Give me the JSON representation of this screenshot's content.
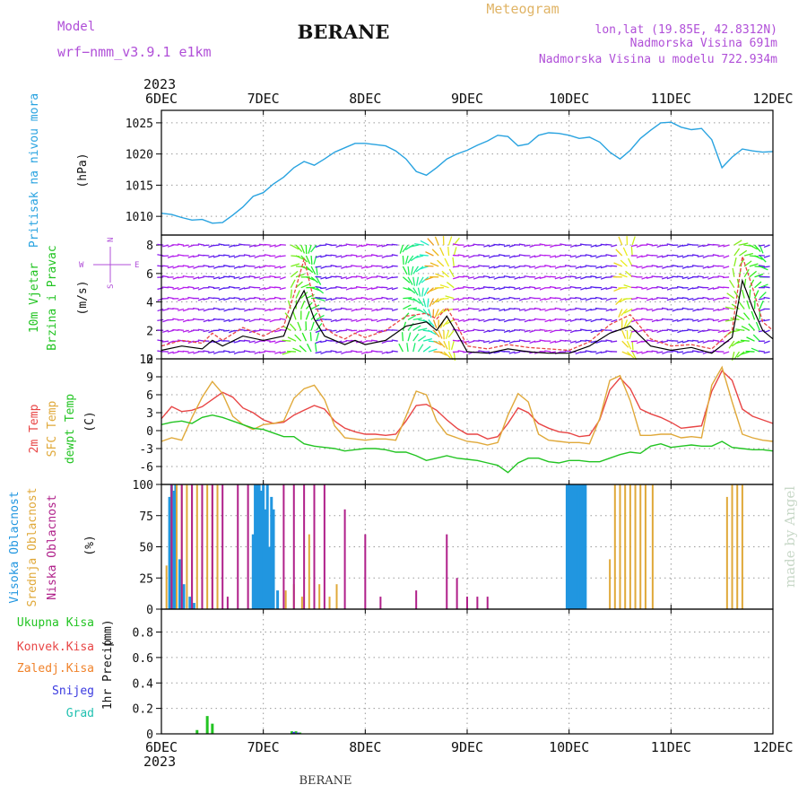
{
  "header": {
    "model_label": "Model",
    "model_value": "wrf−nmm_v3.9.1  e1km",
    "station": "BERANE",
    "product": "Meteogram",
    "lonlat": "lon,lat (19.85E, 42.8312N)",
    "elevation": "Nadmorska Visina 691m",
    "model_elevation": "Nadmorska Visina u modelu 722.934m",
    "footer_station": "BERANE",
    "credit": "made by Angel"
  },
  "colors": {
    "pressure": "#29a3e0",
    "temp2m": "#e84545",
    "sfc": "#e0a93a",
    "dewpt": "#22c422",
    "high_cloud": "#2196e0",
    "mid_cloud": "#e0a93a",
    "low_cloud": "#b0208a",
    "total_precip": "#22c422",
    "conv_precip": "#e84545",
    "frz_precip": "#f0822a",
    "snow": "#3a3ae0",
    "hail": "#20c0b0",
    "wind_label": "#22c422",
    "wind_direction": "#b04fd8"
  },
  "chart_data": [
    {
      "type": "line",
      "panel": "pressure",
      "ylabel": "Pritisak na nivou mora",
      "unit": "(hPa)",
      "ylim": [
        1007,
        1027
      ],
      "yticks": [
        1010,
        1015,
        1020,
        1025
      ],
      "xticks": [
        "6DEC",
        "7DEC",
        "8DEC",
        "9DEC",
        "10DEC",
        "11DEC",
        "12DEC"
      ],
      "year": "2023",
      "grid": true,
      "series": [
        {
          "key": "pressure",
          "x": [
            0,
            0.1,
            0.2,
            0.3,
            0.4,
            0.5,
            0.6,
            0.7,
            0.8,
            0.9,
            1.0,
            1.1,
            1.2,
            1.3,
            1.4,
            1.5,
            1.6,
            1.7,
            1.8,
            1.9,
            2.0,
            2.1,
            2.2,
            2.3,
            2.4,
            2.5,
            2.6,
            2.7,
            2.8,
            2.9,
            3.0,
            3.1,
            3.2,
            3.3,
            3.4,
            3.5,
            3.6,
            3.7,
            3.8,
            3.9,
            4.0,
            4.1,
            4.2,
            4.3,
            4.4,
            4.5,
            4.6,
            4.7,
            4.8,
            4.9,
            5.0,
            5.1,
            5.2,
            5.3,
            5.4,
            5.5,
            5.6,
            5.7,
            5.8,
            5.9,
            6.0
          ],
          "values": [
            1010.5,
            1010.3,
            1009.8,
            1009.4,
            1009.5,
            1008.9,
            1009.0,
            1010.2,
            1011.5,
            1013.2,
            1013.8,
            1015.2,
            1016.3,
            1017.8,
            1018.8,
            1018.2,
            1019.2,
            1020.3,
            1021.0,
            1021.7,
            1021.7,
            1021.5,
            1021.3,
            1020.5,
            1019.2,
            1017.2,
            1016.6,
            1017.8,
            1019.2,
            1020.0,
            1020.6,
            1021.4,
            1022.1,
            1023.0,
            1022.8,
            1021.3,
            1021.6,
            1023.0,
            1023.4,
            1023.3,
            1023.0,
            1022.5,
            1022.7,
            1021.9,
            1020.3,
            1019.2,
            1020.6,
            1022.5,
            1023.8,
            1025.0,
            1025.1,
            1024.3,
            1023.9,
            1024.1,
            1022.3,
            1017.8,
            1019.5,
            1020.8,
            1020.5,
            1020.3,
            1020.4
          ]
        }
      ]
    },
    {
      "type": "line",
      "panel": "wind",
      "ylabel": "10m Vjetar",
      "ylabel2": "Brzina i Pravac",
      "unit": "(m/s)",
      "compass": {
        "n": "N",
        "s": "S",
        "w": "W",
        "e": "E"
      },
      "ylim": [
        0,
        8.7
      ],
      "yticks": [
        0,
        2,
        4,
        6,
        8
      ],
      "grid": true,
      "series": [
        {
          "key": "speed",
          "x": [
            0,
            0.2,
            0.4,
            0.5,
            0.6,
            0.8,
            1.0,
            1.2,
            1.3,
            1.4,
            1.5,
            1.6,
            1.7,
            1.8,
            1.9,
            2.0,
            2.2,
            2.4,
            2.6,
            2.7,
            2.8,
            2.9,
            3.0,
            3.2,
            3.4,
            3.6,
            3.8,
            4.0,
            4.2,
            4.4,
            4.6,
            4.8,
            5.0,
            5.2,
            5.4,
            5.6,
            5.7,
            5.8,
            5.9,
            6.0
          ],
          "values": [
            0.6,
            0.9,
            0.7,
            1.3,
            0.9,
            1.6,
            1.3,
            1.6,
            3.5,
            4.8,
            2.8,
            1.6,
            1.3,
            1.0,
            1.3,
            1.0,
            1.3,
            2.3,
            2.6,
            2.0,
            3.0,
            1.8,
            0.5,
            0.4,
            0.7,
            0.5,
            0.4,
            0.4,
            0.9,
            1.8,
            2.3,
            0.9,
            0.6,
            0.8,
            0.4,
            1.5,
            5.5,
            3.6,
            2.0,
            1.4
          ]
        },
        {
          "key": "gust",
          "x": [
            0,
            0.2,
            0.4,
            0.5,
            0.6,
            0.8,
            1.0,
            1.2,
            1.3,
            1.4,
            1.5,
            1.6,
            1.7,
            1.8,
            1.9,
            2.0,
            2.2,
            2.4,
            2.6,
            2.7,
            2.8,
            2.9,
            3.0,
            3.2,
            3.4,
            3.6,
            3.8,
            4.0,
            4.2,
            4.4,
            4.6,
            4.8,
            5.0,
            5.2,
            5.4,
            5.6,
            5.7,
            5.8,
            5.9,
            6.0
          ],
          "values": [
            0.9,
            1.3,
            1.1,
            1.8,
            1.3,
            2.2,
            1.6,
            2.3,
            4.5,
            7.0,
            4.0,
            2.2,
            1.7,
            1.4,
            1.8,
            1.5,
            2.0,
            3.0,
            3.2,
            2.8,
            3.6,
            2.4,
            0.9,
            0.7,
            1.0,
            0.8,
            0.7,
            0.6,
            1.2,
            2.4,
            3.1,
            1.4,
            0.9,
            1.0,
            0.7,
            2.0,
            7.2,
            5.0,
            2.6,
            2.0
          ]
        }
      ]
    },
    {
      "type": "line",
      "panel": "temperature",
      "ylabel": "2m Temp",
      "ylabel2": "SFC Temp",
      "ylabel3": "dewpt Temp",
      "unit": "(C)",
      "ylim": [
        -9,
        12
      ],
      "yticks": [
        -6,
        -3,
        0,
        3,
        6,
        9,
        12
      ],
      "grid": true,
      "series": [
        {
          "key": "temp2m",
          "x": [
            0,
            0.1,
            0.2,
            0.3,
            0.4,
            0.5,
            0.6,
            0.7,
            0.8,
            0.9,
            1.0,
            1.1,
            1.2,
            1.3,
            1.4,
            1.5,
            1.6,
            1.7,
            1.8,
            1.9,
            2.0,
            2.1,
            2.2,
            2.3,
            2.4,
            2.5,
            2.6,
            2.7,
            2.8,
            2.9,
            3.0,
            3.1,
            3.2,
            3.3,
            3.4,
            3.5,
            3.6,
            3.7,
            3.8,
            3.9,
            4.0,
            4.1,
            4.2,
            4.3,
            4.4,
            4.5,
            4.6,
            4.7,
            4.8,
            4.9,
            5.0,
            5.1,
            5.2,
            5.3,
            5.4,
            5.5,
            5.6,
            5.7,
            5.8,
            5.9,
            6.0
          ],
          "values": [
            2.0,
            4.0,
            3.2,
            3.4,
            4.0,
            5.2,
            6.4,
            5.6,
            3.8,
            3.0,
            1.8,
            1.2,
            1.4,
            2.6,
            3.4,
            4.2,
            3.6,
            1.6,
            0.4,
            -0.2,
            -0.6,
            -0.6,
            -0.8,
            -0.6,
            1.6,
            4.2,
            4.4,
            3.4,
            1.8,
            0.4,
            -0.6,
            -0.6,
            -1.4,
            -1.0,
            1.2,
            3.8,
            3.0,
            1.2,
            0.4,
            -0.2,
            -0.4,
            -1.0,
            -0.8,
            1.8,
            6.8,
            8.8,
            7.0,
            3.6,
            2.8,
            2.2,
            1.4,
            0.4,
            0.6,
            0.8,
            6.6,
            10.0,
            8.4,
            3.6,
            2.4,
            1.8,
            1.2
          ]
        },
        {
          "key": "sfc",
          "x": [
            0,
            0.1,
            0.2,
            0.3,
            0.4,
            0.5,
            0.6,
            0.7,
            0.8,
            0.9,
            1.0,
            1.1,
            1.2,
            1.3,
            1.4,
            1.5,
            1.6,
            1.7,
            1.8,
            1.9,
            2.0,
            2.1,
            2.2,
            2.3,
            2.4,
            2.5,
            2.6,
            2.7,
            2.8,
            2.9,
            3.0,
            3.1,
            3.2,
            3.3,
            3.4,
            3.5,
            3.6,
            3.7,
            3.8,
            3.9,
            4.0,
            4.1,
            4.2,
            4.3,
            4.4,
            4.5,
            4.6,
            4.7,
            4.8,
            4.9,
            5.0,
            5.1,
            5.2,
            5.3,
            5.4,
            5.5,
            5.6,
            5.7,
            5.8,
            5.9,
            6.0
          ],
          "values": [
            -1.8,
            -1.2,
            -1.6,
            2.2,
            5.6,
            8.2,
            6.2,
            2.4,
            1.0,
            0.2,
            1.0,
            1.2,
            1.6,
            5.4,
            7.0,
            7.6,
            5.2,
            0.8,
            -1.2,
            -1.4,
            -1.6,
            -1.4,
            -1.4,
            -1.6,
            2.4,
            6.6,
            6.0,
            1.6,
            -0.6,
            -1.2,
            -1.8,
            -2.0,
            -2.4,
            -2.0,
            2.6,
            6.2,
            4.8,
            -0.6,
            -1.6,
            -1.8,
            -2.0,
            -2.0,
            -2.2,
            2.0,
            8.4,
            9.2,
            5.0,
            -0.8,
            -0.8,
            -0.6,
            -0.6,
            -1.2,
            -1.0,
            -1.2,
            7.6,
            10.6,
            4.8,
            -0.6,
            -1.2,
            -1.6,
            -1.8
          ]
        },
        {
          "key": "dewpt",
          "x": [
            0,
            0.1,
            0.2,
            0.3,
            0.4,
            0.5,
            0.6,
            0.7,
            0.8,
            0.9,
            1.0,
            1.1,
            1.2,
            1.3,
            1.4,
            1.5,
            1.6,
            1.7,
            1.8,
            1.9,
            2.0,
            2.1,
            2.2,
            2.3,
            2.4,
            2.5,
            2.6,
            2.7,
            2.8,
            2.9,
            3.0,
            3.1,
            3.2,
            3.3,
            3.4,
            3.5,
            3.6,
            3.7,
            3.8,
            3.9,
            4.0,
            4.1,
            4.2,
            4.3,
            4.4,
            4.5,
            4.6,
            4.7,
            4.8,
            4.9,
            5.0,
            5.1,
            5.2,
            5.3,
            5.4,
            5.5,
            5.6,
            5.7,
            5.8,
            5.9,
            6.0
          ],
          "values": [
            1.0,
            1.4,
            1.6,
            1.2,
            2.2,
            2.6,
            2.2,
            1.6,
            1.0,
            0.4,
            0.2,
            -0.4,
            -1.0,
            -1.0,
            -2.2,
            -2.6,
            -2.8,
            -3.0,
            -3.4,
            -3.2,
            -3.0,
            -3.0,
            -3.2,
            -3.6,
            -3.6,
            -4.2,
            -5.0,
            -4.6,
            -4.2,
            -4.6,
            -4.8,
            -5.0,
            -5.4,
            -5.8,
            -7.0,
            -5.4,
            -4.6,
            -4.6,
            -5.2,
            -5.4,
            -5.0,
            -5.0,
            -5.2,
            -5.2,
            -4.6,
            -4.0,
            -3.6,
            -3.8,
            -2.6,
            -2.2,
            -2.8,
            -2.6,
            -2.4,
            -2.6,
            -2.6,
            -1.8,
            -2.8,
            -3.0,
            -3.2,
            -3.2,
            -3.4
          ]
        }
      ]
    },
    {
      "type": "bar",
      "panel": "clouds",
      "ylabel": "Visoka Oblacnost",
      "ylabel2": "Srednja Oblacnost",
      "ylabel3": "Niska Oblacnost",
      "unit": "(%)",
      "ylim": [
        0,
        100
      ],
      "yticks": [
        0,
        25,
        50,
        75,
        100
      ],
      "grid": true,
      "series": [
        {
          "key": "high_cloud",
          "x": [
            0.08,
            0.1,
            0.12,
            0.14,
            0.18,
            0.22,
            0.28,
            0.32,
            0.9,
            0.92,
            0.94,
            0.96,
            0.98,
            1.0,
            1.02,
            1.04,
            1.06,
            1.08,
            1.1,
            1.14,
            3.98,
            4.0,
            4.02,
            4.04,
            4.06,
            4.08,
            4.1,
            4.12,
            4.14,
            4.16
          ],
          "values": [
            90,
            100,
            95,
            100,
            40,
            20,
            10,
            5,
            60,
            100,
            100,
            100,
            95,
            100,
            80,
            100,
            50,
            90,
            80,
            15,
            100,
            100,
            100,
            100,
            100,
            100,
            100,
            100,
            100,
            100
          ]
        },
        {
          "key": "mid_cloud",
          "x": [
            0.05,
            0.1,
            0.15,
            0.2,
            0.25,
            0.3,
            0.35,
            0.4,
            0.45,
            0.5,
            0.55,
            1.22,
            1.3,
            1.38,
            1.45,
            1.55,
            1.65,
            1.72,
            4.4,
            4.45,
            4.5,
            4.55,
            4.6,
            4.65,
            4.7,
            4.75,
            4.82,
            5.55,
            5.6,
            5.65,
            5.7
          ],
          "values": [
            35,
            100,
            100,
            100,
            100,
            100,
            100,
            100,
            100,
            100,
            100,
            15,
            20,
            10,
            60,
            20,
            10,
            20,
            40,
            100,
            100,
            100,
            100,
            100,
            100,
            100,
            100,
            90,
            100,
            100,
            100
          ]
        },
        {
          "key": "low_cloud",
          "x": [
            0.1,
            0.2,
            0.3,
            0.4,
            0.5,
            0.6,
            0.65,
            0.75,
            0.85,
            1.2,
            1.3,
            1.4,
            1.5,
            1.6,
            1.8,
            2.0,
            2.15,
            2.5,
            2.8,
            2.9,
            3.0,
            3.1,
            3.2
          ],
          "values": [
            100,
            100,
            100,
            100,
            100,
            100,
            10,
            100,
            100,
            100,
            100,
            100,
            100,
            100,
            80,
            60,
            10,
            15,
            60,
            25,
            10,
            10,
            10
          ]
        }
      ]
    },
    {
      "type": "bar",
      "panel": "precipitation",
      "ylabel": "1hr Precip",
      "unit": "(mm)",
      "legend": [
        "Ukupna Kisa",
        "Konvek.Kisa",
        "Zaledj.Kisa",
        "Snijeg",
        "Grad"
      ],
      "ylim": [
        0,
        0.98
      ],
      "yticks": [
        0,
        0.2,
        0.4,
        0.6,
        0.8
      ],
      "grid": true,
      "series": [
        {
          "key": "total_precip",
          "x": [
            0.35,
            0.45,
            0.5,
            1.28,
            1.32,
            1.36
          ],
          "values": [
            0.03,
            0.14,
            0.08,
            0.02,
            0.02,
            0.01
          ]
        },
        {
          "key": "snow",
          "x": [
            1.3,
            1.34
          ],
          "values": [
            0.015,
            0.01
          ]
        }
      ]
    }
  ]
}
